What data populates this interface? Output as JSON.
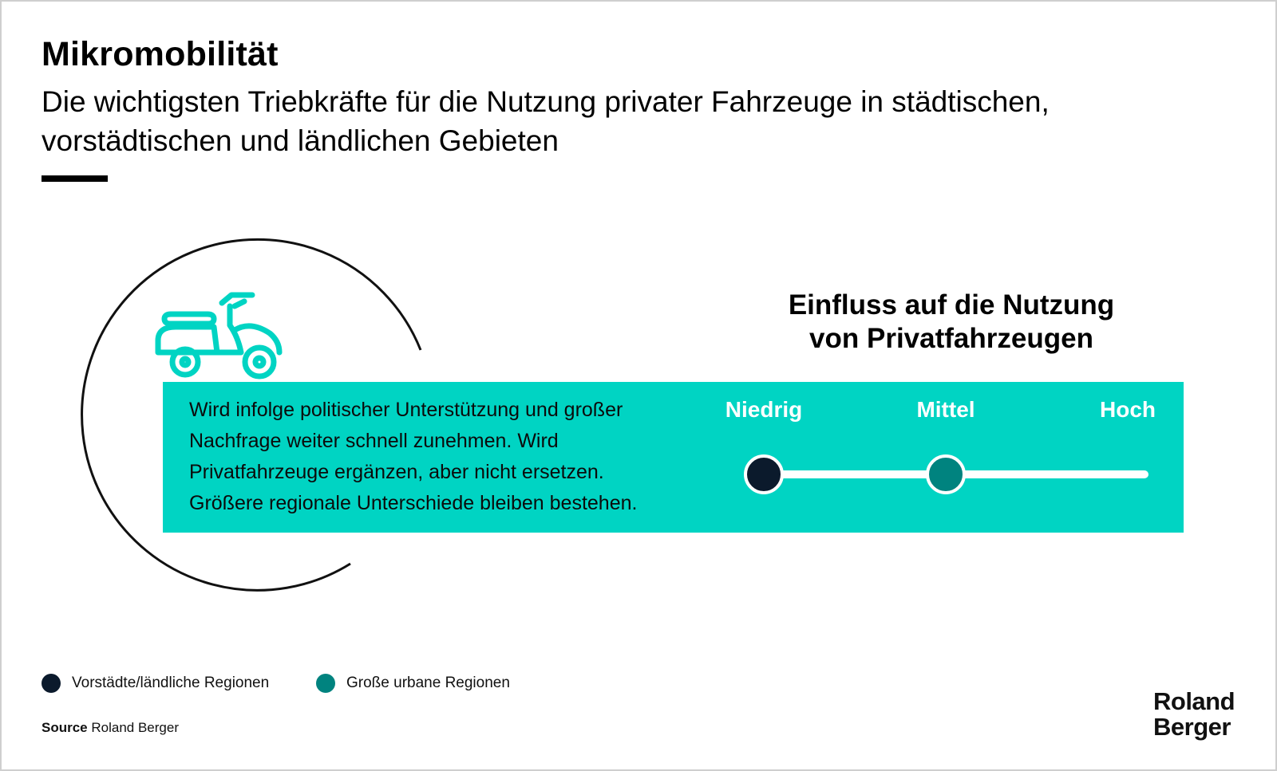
{
  "header": {
    "title": "Mikromobilität",
    "subtitle": "Die wichtigsten Triebkräfte für die Nutzung privater Fahrzeuge in städtischen, vorstädtischen und ländlichen Gebieten"
  },
  "illustration": {
    "icon": "scooter-icon"
  },
  "panel": {
    "lines": [
      "Wird infolge politischer Unterstützung und großer",
      "Nachfrage weiter schnell zunehmen. Wird",
      "Privatfahrzeuge ergänzen, aber nicht ersetzen.",
      "Größere regionale Unterschiede bleiben bestehen."
    ]
  },
  "impact": {
    "title_line1": "Einfluss auf die Nutzung",
    "title_line2": "von Privatfahrzeugen",
    "scale": [
      "Niedrig",
      "Mittel",
      "Hoch"
    ],
    "markers": [
      {
        "series": "Vorstädte/ländliche Regionen",
        "level": "Niedrig",
        "position": 0.0
      },
      {
        "series": "Große urbane Regionen",
        "level": "Mittel",
        "position": 0.5
      }
    ]
  },
  "legend": [
    {
      "label": "Vorstädte/ländliche Regionen",
      "color": "#0b1a2c"
    },
    {
      "label": "Große urbane Regionen",
      "color": "#00837f"
    }
  ],
  "footer": {
    "source_label": "Source",
    "source_text": "Roland Berger",
    "logo_line1": "Roland",
    "logo_line2": "Berger"
  },
  "colors": {
    "accent": "#00d4c3",
    "dark_navy": "#0b1a2c",
    "teal_dark": "#00837f",
    "scooter": "#00d4c3"
  }
}
